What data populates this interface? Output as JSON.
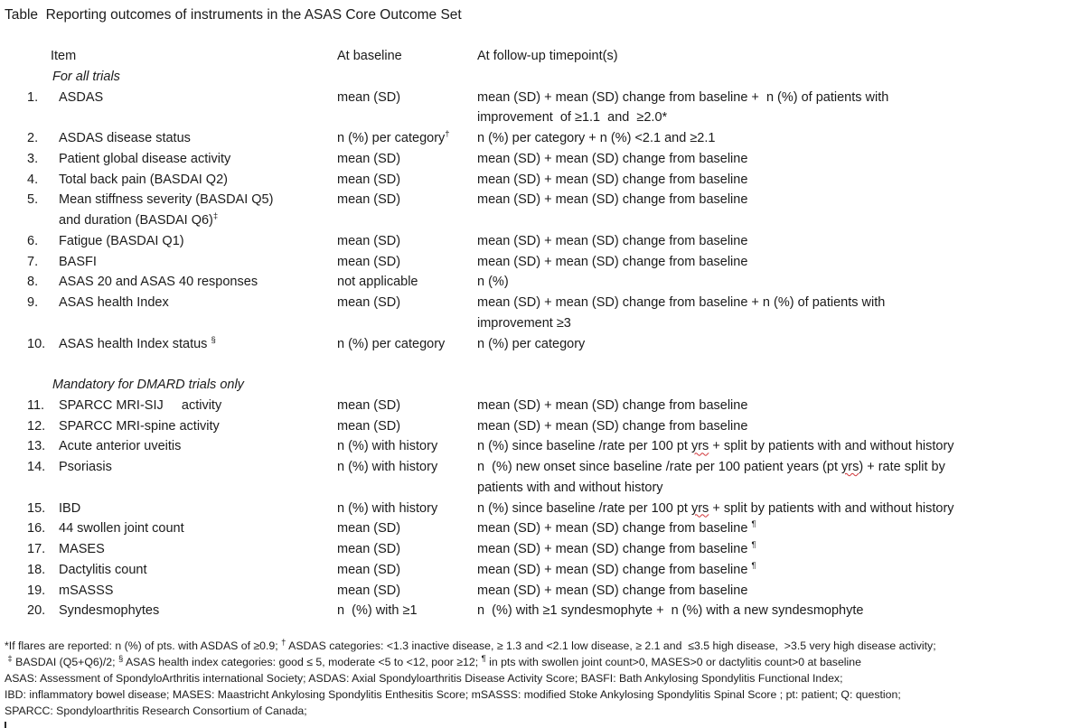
{
  "title": "Table  Reporting outcomes of instruments in the ASAS Core Outcome Set",
  "colors": {
    "text": "#1b1b1b",
    "squiggle_red": "#d13438",
    "background": "#ffffff"
  },
  "table": {
    "headers": {
      "item": "Item",
      "baseline": "At baseline",
      "followup": "At follow-up timepoint(s)"
    },
    "rows": [
      {
        "type": "section",
        "label": "For all trials"
      },
      {
        "type": "item",
        "num": "1.",
        "item": [
          {
            "t": "ASDAS"
          }
        ],
        "baseline": [
          {
            "t": "mean (SD)"
          }
        ],
        "followup": [
          {
            "t": "mean (SD) + mean (SD) change from baseline +  n (%) of patients with"
          },
          {
            "br": true
          },
          {
            "t": "improvement  of ≥1.1  and  ≥2.0*"
          }
        ]
      },
      {
        "type": "item",
        "num": "2.",
        "item": [
          {
            "t": "ASDAS disease status"
          }
        ],
        "baseline": [
          {
            "t": "n (%) per category"
          },
          {
            "t": "†",
            "sup": true
          }
        ],
        "followup": [
          {
            "t": "n (%) per category + n (%) <2.1 and ≥2.1"
          }
        ]
      },
      {
        "type": "item",
        "num": "3.",
        "item": [
          {
            "t": "Patient global disease activity"
          }
        ],
        "baseline": [
          {
            "t": "mean (SD)"
          }
        ],
        "followup": [
          {
            "t": "mean (SD) + mean (SD) change from baseline"
          }
        ]
      },
      {
        "type": "item",
        "num": "4.",
        "item": [
          {
            "t": "Total back pain (BASDAI Q2)"
          }
        ],
        "baseline": [
          {
            "t": "mean (SD)"
          }
        ],
        "followup": [
          {
            "t": "mean (SD) + mean (SD) change from baseline"
          }
        ]
      },
      {
        "type": "item",
        "num": "5.",
        "item": [
          {
            "t": "Mean stiffness severity (BASDAI Q5)"
          },
          {
            "br": true
          },
          {
            "t": "and duration (BASDAI Q6)"
          },
          {
            "t": "‡",
            "sup": true
          }
        ],
        "baseline": [
          {
            "t": "mean (SD)"
          }
        ],
        "followup": [
          {
            "t": "mean (SD) + mean (SD) change from baseline"
          }
        ]
      },
      {
        "type": "item",
        "num": "6.",
        "item": [
          {
            "t": "Fatigue (BASDAI Q1)"
          }
        ],
        "baseline": [
          {
            "t": "mean (SD)"
          }
        ],
        "followup": [
          {
            "t": "mean (SD) + mean (SD) change from baseline"
          }
        ]
      },
      {
        "type": "item",
        "num": "7.",
        "item": [
          {
            "t": "BASFI"
          }
        ],
        "baseline": [
          {
            "t": "mean (SD)"
          }
        ],
        "followup": [
          {
            "t": "mean (SD) + mean (SD) change from baseline"
          }
        ]
      },
      {
        "type": "item",
        "num": "8.",
        "item": [
          {
            "t": "ASAS 20 and ASAS 40 responses"
          }
        ],
        "baseline": [
          {
            "t": "not applicable"
          }
        ],
        "followup": [
          {
            "t": "n (%)"
          }
        ]
      },
      {
        "type": "item",
        "num": "9.",
        "item": [
          {
            "t": "ASAS health Index"
          }
        ],
        "baseline": [
          {
            "t": "mean (SD)"
          }
        ],
        "followup": [
          {
            "t": "mean (SD) + mean (SD) change from baseline + n (%) of patients with"
          },
          {
            "br": true
          },
          {
            "t": "improvement ≥3"
          }
        ]
      },
      {
        "type": "item",
        "num": "10.",
        "item": [
          {
            "t": "ASAS health Index status "
          },
          {
            "t": "§",
            "sup": true
          }
        ],
        "baseline": [
          {
            "t": "n (%) per category"
          }
        ],
        "followup": [
          {
            "t": "n (%) per category"
          }
        ]
      },
      {
        "type": "spacer"
      },
      {
        "type": "section",
        "label": "Mandatory for DMARD trials only"
      },
      {
        "type": "item",
        "num": "11.",
        "item": [
          {
            "t": "SPARCC MRI-SIJ     activity"
          }
        ],
        "baseline": [
          {
            "t": "mean (SD)"
          }
        ],
        "followup": [
          {
            "t": "mean (SD) + mean (SD) change from baseline"
          }
        ]
      },
      {
        "type": "item",
        "num": "12.",
        "item": [
          {
            "t": "SPARCC MRI-spine activity"
          }
        ],
        "baseline": [
          {
            "t": "mean (SD)"
          }
        ],
        "followup": [
          {
            "t": "mean (SD) + mean (SD) change from baseline"
          }
        ]
      },
      {
        "type": "item",
        "num": "13.",
        "item": [
          {
            "t": "Acute anterior uveitis"
          }
        ],
        "baseline": [
          {
            "t": "n (%) with history"
          }
        ],
        "followup": [
          {
            "t": "n (%) since baseline /rate per 100 pt "
          },
          {
            "t": "yrs",
            "sq": true
          },
          {
            "t": " + split by patients with and without history"
          }
        ]
      },
      {
        "type": "item",
        "num": "14.",
        "item": [
          {
            "t": "Psoriasis"
          }
        ],
        "baseline": [
          {
            "t": "n (%) with history"
          }
        ],
        "followup": [
          {
            "t": "n  (%) new onset since baseline /rate per 100 patient years (pt "
          },
          {
            "t": "yrs",
            "sq": true
          },
          {
            "t": ") + rate split by"
          },
          {
            "br": true
          },
          {
            "t": "patients with and without history"
          }
        ]
      },
      {
        "type": "item",
        "num": "15.",
        "item": [
          {
            "t": "IBD"
          }
        ],
        "baseline": [
          {
            "t": "n (%) with history"
          }
        ],
        "followup": [
          {
            "t": "n (%) since baseline /rate per 100 pt "
          },
          {
            "t": "yrs",
            "sq": true
          },
          {
            "t": " + split by patients with and without history"
          }
        ]
      },
      {
        "type": "item",
        "num": "16.",
        "item": [
          {
            "t": "44 swollen joint count"
          }
        ],
        "baseline": [
          {
            "t": "mean (SD)"
          }
        ],
        "followup": [
          {
            "t": "mean (SD) + mean (SD) change from baseline "
          },
          {
            "t": "¶",
            "sup": true
          }
        ]
      },
      {
        "type": "item",
        "num": "17.",
        "item": [
          {
            "t": "MASES"
          }
        ],
        "baseline": [
          {
            "t": "mean (SD)"
          }
        ],
        "followup": [
          {
            "t": "mean (SD) + mean (SD) change from baseline "
          },
          {
            "t": "¶",
            "sup": true
          }
        ]
      },
      {
        "type": "item",
        "num": "18.",
        "item": [
          {
            "t": "Dactylitis count"
          }
        ],
        "baseline": [
          {
            "t": "mean (SD)"
          }
        ],
        "followup": [
          {
            "t": "mean (SD) + mean (SD) change from baseline "
          },
          {
            "t": "¶",
            "sup": true
          }
        ]
      },
      {
        "type": "item",
        "num": "19.",
        "item": [
          {
            "t": "mSASSS"
          }
        ],
        "baseline": [
          {
            "t": "mean (SD)"
          }
        ],
        "followup": [
          {
            "t": "mean (SD) + mean (SD) change from baseline"
          }
        ]
      },
      {
        "type": "item",
        "num": "20.",
        "item": [
          {
            "t": "Syndesmophytes"
          }
        ],
        "baseline": [
          {
            "t": "n  (%) with ≥1"
          }
        ],
        "followup": [
          {
            "t": "n  (%) with ≥1 syndesmophyte +  n (%) with a new syndesmophyte"
          }
        ]
      }
    ]
  },
  "footnotes": {
    "lines": [
      [
        {
          "t": "*If flares are reported: n (%) of pts. with ASDAS of ≥0.9; "
        },
        {
          "t": "†",
          "sup": true
        },
        {
          "t": " ASDAS categories: <1.3 inactive disease, ≥ 1.3 and <2.1 low disease, ≥ 2.1 and  ≤3.5 high disease,  >3.5 very high disease activity;"
        }
      ],
      [
        {
          "t": " "
        },
        {
          "t": "‡",
          "sup": true
        },
        {
          "t": " BASDAI (Q5+Q6)/2; "
        },
        {
          "t": "§",
          "sup": true
        },
        {
          "t": " ASAS health index categories: good ≤ 5, moderate <5 to <12, poor ≥12; "
        },
        {
          "t": "¶",
          "sup": true
        },
        {
          "t": " in pts with swollen joint count>0, MASES>0 or dactylitis count>0 at baseline"
        }
      ],
      [
        {
          "t": "ASAS: Assessment of SpondyloArthritis international Society; ASDAS: Axial Spondyloarthritis Disease Activity Score; BASFI: Bath Ankylosing Spondylitis Functional Index;"
        }
      ],
      [
        {
          "t": "IBD: inflammatory bowel disease; MASES: Maastricht Ankylosing Spondylitis Enthesitis Score; mSASSS: modified Stoke Ankylosing Spondylitis Spinal Score ; pt: patient; Q: question;"
        }
      ],
      [
        {
          "t": "SPARCC: Spondyloarthritis Research Consortium of Canada;"
        }
      ]
    ]
  }
}
